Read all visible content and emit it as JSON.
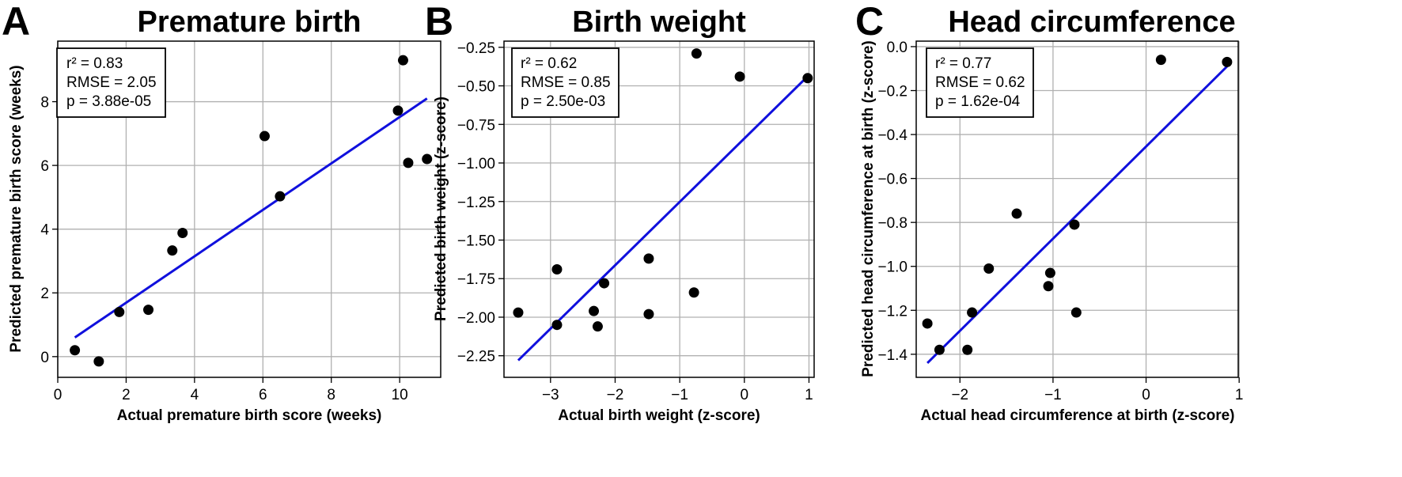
{
  "chart_data": [
    {
      "type": "scatter",
      "panel_letter": "A",
      "title": "Premature birth",
      "xlabel": "Actual premature birth score (weeks)",
      "ylabel": "Predicted premature birth score (weeks)",
      "xlim": [
        0,
        11.2
      ],
      "ylim": [
        -0.65,
        9.9
      ],
      "xticks": [
        0,
        2,
        4,
        6,
        8,
        10
      ],
      "yticks": [
        0,
        2,
        4,
        6,
        8
      ],
      "xtick_labels": [
        "0",
        "2",
        "4",
        "6",
        "8",
        "10"
      ],
      "ytick_labels": [
        "0",
        "2",
        "4",
        "6",
        "8"
      ],
      "grid": true,
      "stats": [
        "r² = 0.83",
        "RMSE = 2.05",
        "p = 3.88e-05"
      ],
      "fit_line": {
        "x": [
          0.5,
          10.8
        ],
        "y": [
          0.6,
          8.1
        ]
      },
      "points": [
        {
          "x": 0.5,
          "y": 0.2
        },
        {
          "x": 1.2,
          "y": -0.15
        },
        {
          "x": 1.8,
          "y": 1.4
        },
        {
          "x": 2.65,
          "y": 1.47
        },
        {
          "x": 3.35,
          "y": 3.33
        },
        {
          "x": 3.65,
          "y": 3.88
        },
        {
          "x": 6.05,
          "y": 6.92
        },
        {
          "x": 6.5,
          "y": 5.03
        },
        {
          "x": 9.95,
          "y": 7.72
        },
        {
          "x": 10.1,
          "y": 9.3
        },
        {
          "x": 10.25,
          "y": 6.08
        },
        {
          "x": 10.8,
          "y": 6.2
        }
      ]
    },
    {
      "type": "scatter",
      "panel_letter": "B",
      "title": "Birth weight",
      "xlabel": "Actual birth weight (z-score)",
      "ylabel": "Predicted birth weight (z-score)",
      "xlim": [
        -3.72,
        1.08
      ],
      "ylim": [
        -2.39,
        -0.21
      ],
      "xticks": [
        -3,
        -2,
        -1,
        0,
        1
      ],
      "yticks": [
        -0.25,
        -0.5,
        -0.75,
        -1.0,
        -1.25,
        -1.5,
        -1.75,
        -2.0,
        -2.25
      ],
      "xtick_labels": [
        "−3",
        "−2",
        "−1",
        "0",
        "1"
      ],
      "ytick_labels": [
        "−0.25",
        "−0.50",
        "−0.75",
        "−1.00",
        "−1.25",
        "−1.50",
        "−1.75",
        "−2.00",
        "−2.25"
      ],
      "grid": true,
      "stats": [
        "r² = 0.62",
        "RMSE = 0.85",
        "p = 2.50e-03"
      ],
      "fit_line": {
        "x": [
          -3.5,
          1.0
        ],
        "y": [
          -2.28,
          -0.43
        ]
      },
      "points": [
        {
          "x": -3.5,
          "y": -1.97
        },
        {
          "x": -2.9,
          "y": -1.69
        },
        {
          "x": -2.9,
          "y": -2.05
        },
        {
          "x": -2.33,
          "y": -1.96
        },
        {
          "x": -2.27,
          "y": -2.06
        },
        {
          "x": -2.17,
          "y": -1.78
        },
        {
          "x": -1.48,
          "y": -1.62
        },
        {
          "x": -1.48,
          "y": -1.98
        },
        {
          "x": -0.78,
          "y": -1.84
        },
        {
          "x": -0.74,
          "y": -0.29
        },
        {
          "x": -0.07,
          "y": -0.44
        },
        {
          "x": 0.98,
          "y": -0.45
        }
      ]
    },
    {
      "type": "scatter",
      "panel_letter": "C",
      "title": "Head circumference",
      "xlabel": "Actual head circumference at birth (z-score)",
      "ylabel": "Predicted head circumference at birth (z-score)",
      "xlim": [
        -2.47,
        0.99
      ],
      "ylim": [
        -1.505,
        0.025
      ],
      "xticks": [
        -2,
        -1,
        0,
        1
      ],
      "yticks": [
        0.0,
        -0.2,
        -0.4,
        -0.6,
        -0.8,
        -1.0,
        -1.2,
        -1.4
      ],
      "xtick_labels": [
        "−2",
        "−1",
        "0",
        "1"
      ],
      "ytick_labels": [
        "0.0",
        "−0.2",
        "−0.4",
        "−0.6",
        "−0.8",
        "−1.0",
        "−1.2",
        "−1.4"
      ],
      "grid": true,
      "stats": [
        "r² = 0.77",
        "RMSE = 0.62",
        "p = 1.62e-04"
      ],
      "fit_line": {
        "x": [
          -2.35,
          0.87
        ],
        "y": [
          -1.44,
          -0.09
        ]
      },
      "points": [
        {
          "x": -2.35,
          "y": -1.26
        },
        {
          "x": -2.22,
          "y": -1.38
        },
        {
          "x": -1.92,
          "y": -1.38
        },
        {
          "x": -1.87,
          "y": -1.21
        },
        {
          "x": -1.69,
          "y": -1.01
        },
        {
          "x": -1.39,
          "y": -0.76
        },
        {
          "x": -1.05,
          "y": -1.09
        },
        {
          "x": -1.03,
          "y": -1.03
        },
        {
          "x": -0.77,
          "y": -0.81
        },
        {
          "x": -0.75,
          "y": -1.21
        },
        {
          "x": 0.16,
          "y": -0.06
        },
        {
          "x": 0.87,
          "y": -0.07
        }
      ]
    }
  ]
}
